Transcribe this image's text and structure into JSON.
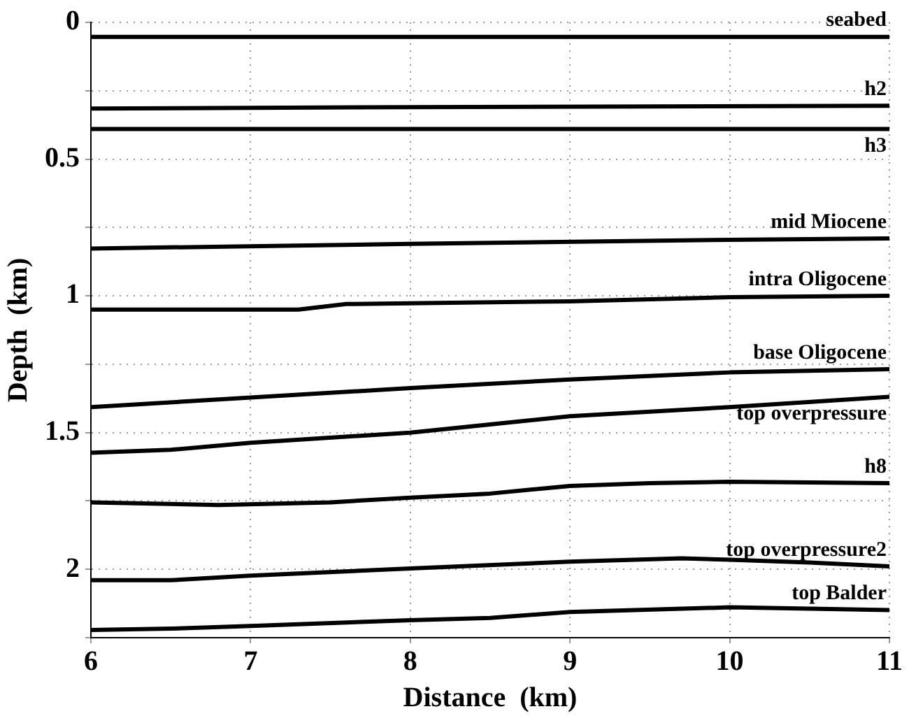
{
  "chart_data": {
    "type": "line",
    "xlabel": "Distance  (km)",
    "ylabel": "Depth  (km)",
    "xlim": [
      6,
      11
    ],
    "xticks": [
      6,
      7,
      8,
      9,
      10,
      11
    ],
    "ylim": [
      2.25,
      0
    ],
    "yticks": [
      0,
      {
        "value": 0.25,
        "label": null
      },
      0.5,
      {
        "value": 0.75,
        "label": null
      },
      1,
      {
        "value": 1.25,
        "label": null
      },
      1.5,
      {
        "value": 1.75,
        "label": null
      },
      2,
      {
        "value": 2.25,
        "label": null
      }
    ],
    "grid": true,
    "legend": false,
    "marker": "none",
    "line_style": "solid",
    "series": [
      {
        "name": "seabed",
        "color": "#000000",
        "x": [
          6,
          11
        ],
        "values": [
          0.053,
          0.053
        ]
      },
      {
        "name": "h2",
        "color": "#000000",
        "x": [
          6,
          8,
          11
        ],
        "values": [
          0.315,
          0.31,
          0.305
        ]
      },
      {
        "name": "h3",
        "color": "#000000",
        "x": [
          6,
          11
        ],
        "values": [
          0.39,
          0.39
        ]
      },
      {
        "name": "mid Miocene",
        "color": "#000000",
        "x": [
          6,
          8,
          10,
          11
        ],
        "values": [
          0.827,
          0.81,
          0.795,
          0.79
        ]
      },
      {
        "name": "intra Oligocene",
        "color": "#000000",
        "x": [
          6,
          7.3,
          7.6,
          9,
          10,
          11
        ],
        "values": [
          1.05,
          1.05,
          1.03,
          1.02,
          1.005,
          1.0
        ]
      },
      {
        "name": "base Oligocene",
        "color": "#000000",
        "x": [
          6,
          8,
          9,
          10,
          11
        ],
        "values": [
          1.407,
          1.337,
          1.306,
          1.28,
          1.268
        ]
      },
      {
        "name": "top overpressure",
        "color": "#000000",
        "x": [
          6,
          6.5,
          7,
          8,
          8.5,
          9,
          10,
          11
        ],
        "values": [
          1.574,
          1.563,
          1.537,
          1.5,
          1.47,
          1.44,
          1.407,
          1.369
        ]
      },
      {
        "name": "h8",
        "color": "#000000",
        "x": [
          6,
          6.8,
          7.5,
          8,
          8.5,
          9,
          9.5,
          10,
          11
        ],
        "values": [
          1.755,
          1.765,
          1.755,
          1.738,
          1.723,
          1.695,
          1.685,
          1.68,
          1.685
        ]
      },
      {
        "name": "top overpressure2",
        "color": "#000000",
        "x": [
          6,
          6.5,
          7,
          8,
          9,
          9.7,
          10,
          10.5,
          11
        ],
        "values": [
          2.04,
          2.04,
          2.023,
          1.997,
          1.972,
          1.96,
          1.965,
          1.975,
          1.989
        ]
      },
      {
        "name": "top Balder",
        "color": "#000000",
        "x": [
          6,
          6.5,
          7,
          8,
          8.5,
          9,
          10,
          11
        ],
        "values": [
          2.222,
          2.217,
          2.207,
          2.186,
          2.178,
          2.156,
          2.139,
          2.149
        ]
      }
    ]
  }
}
